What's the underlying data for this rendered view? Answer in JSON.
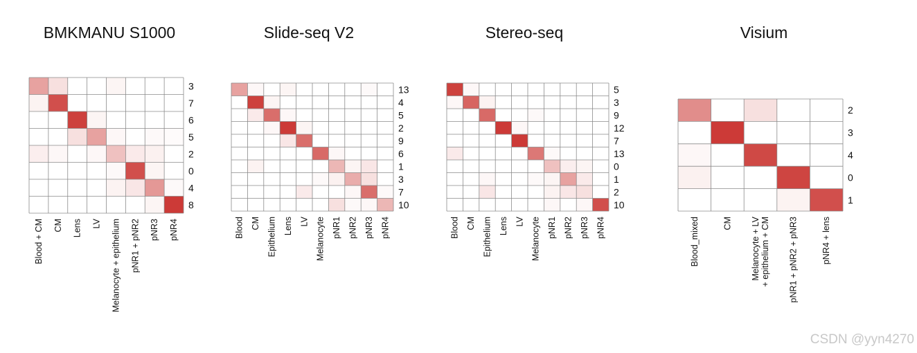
{
  "colors": {
    "max": "#c9302c",
    "grid": "#8a8a8a",
    "zero": "#ffffff"
  },
  "watermark": "CSDN @yyn4270",
  "chart_data": [
    {
      "type": "heatmap",
      "title": "BMKMANU S1000",
      "columns": [
        "Blood + CM",
        "CM",
        "Lens",
        "LV",
        "Melanocyte + epithelium",
        "pNR1 + pNR2",
        "pNR3",
        "pNR4"
      ],
      "rows": [
        "3",
        "7",
        "6",
        "5",
        "2",
        "0",
        "4",
        "8"
      ],
      "values": [
        [
          0.45,
          0.15,
          0,
          0,
          0.05,
          0,
          0,
          0
        ],
        [
          0.06,
          0.85,
          0,
          0,
          0,
          0,
          0,
          0
        ],
        [
          0,
          0,
          0.92,
          0.05,
          0,
          0,
          0,
          0
        ],
        [
          0,
          0,
          0.15,
          0.45,
          0.04,
          0,
          0.03,
          0.02
        ],
        [
          0.08,
          0.04,
          0,
          0.04,
          0.3,
          0.1,
          0.07,
          0
        ],
        [
          0,
          0,
          0,
          0,
          0.03,
          0.85,
          0.05,
          0
        ],
        [
          0,
          0,
          0,
          0,
          0.06,
          0.12,
          0.5,
          0.03
        ],
        [
          0,
          0,
          0,
          0,
          0,
          0,
          0.05,
          0.95
        ]
      ]
    },
    {
      "type": "heatmap",
      "title": "Slide-seq V2",
      "columns": [
        "Blood",
        "CM",
        "Epithelium",
        "Lens",
        "LV",
        "Melanocyte",
        "pNR1",
        "pNR2",
        "pNR3",
        "pNR4"
      ],
      "rows": [
        "13",
        "4",
        "5",
        "2",
        "9",
        "6",
        "1",
        "3",
        "7",
        "10"
      ],
      "values": [
        [
          0.45,
          0.04,
          0,
          0.05,
          0,
          0,
          0,
          0,
          0.03,
          0
        ],
        [
          0,
          0.92,
          0.05,
          0,
          0,
          0,
          0,
          0,
          0,
          0
        ],
        [
          0,
          0.1,
          0.7,
          0.04,
          0,
          0,
          0,
          0,
          0,
          0
        ],
        [
          0,
          0,
          0.04,
          0.95,
          0.05,
          0,
          0,
          0,
          0,
          0
        ],
        [
          0,
          0,
          0,
          0.12,
          0.7,
          0,
          0,
          0,
          0,
          0
        ],
        [
          0,
          0,
          0,
          0,
          0,
          0.72,
          0.04,
          0,
          0,
          0
        ],
        [
          0,
          0.06,
          0,
          0,
          0,
          0,
          0.35,
          0.05,
          0.12,
          0
        ],
        [
          0,
          0,
          0,
          0,
          0,
          0.03,
          0.07,
          0.4,
          0.15,
          0
        ],
        [
          0,
          0,
          0,
          0,
          0.1,
          0,
          0,
          0.04,
          0.7,
          0.03
        ],
        [
          0,
          0,
          0,
          0,
          0,
          0,
          0.15,
          0.03,
          0.04,
          0.35
        ]
      ]
    },
    {
      "type": "heatmap",
      "title": "Stereo-seq",
      "columns": [
        "Blood",
        "CM",
        "Epithelium",
        "Lens",
        "LV",
        "Melanocyte",
        "pNR1",
        "pNR2",
        "pNR3",
        "pNR4"
      ],
      "rows": [
        "5",
        "3",
        "9",
        "12",
        "7",
        "13",
        "0",
        "1",
        "2",
        "10"
      ],
      "values": [
        [
          0.92,
          0.04,
          0,
          0,
          0,
          0,
          0,
          0,
          0,
          0
        ],
        [
          0.04,
          0.75,
          0.06,
          0,
          0,
          0,
          0,
          0,
          0,
          0
        ],
        [
          0,
          0,
          0.72,
          0,
          0,
          0.03,
          0,
          0,
          0,
          0
        ],
        [
          0,
          0,
          0,
          0.95,
          0.04,
          0,
          0,
          0,
          0,
          0
        ],
        [
          0,
          0,
          0,
          0,
          0.95,
          0,
          0,
          0,
          0,
          0
        ],
        [
          0.1,
          0,
          0,
          0,
          0,
          0.65,
          0.03,
          0,
          0,
          0
        ],
        [
          0,
          0,
          0,
          0,
          0,
          0,
          0.3,
          0.08,
          0.05,
          0
        ],
        [
          0,
          0,
          0.04,
          0,
          0,
          0.03,
          0.05,
          0.45,
          0.1,
          0
        ],
        [
          0,
          0,
          0.12,
          0,
          0,
          0,
          0.06,
          0.12,
          0.15,
          0
        ],
        [
          0,
          0,
          0,
          0,
          0,
          0,
          0.04,
          0,
          0.04,
          0.85
        ]
      ]
    },
    {
      "type": "heatmap",
      "title": "Visium",
      "columns": [
        "Blood_mixed",
        "CM",
        "Melanocyte + LV\n+ epithelium + CM",
        "pNR1 + pNR2 + pNR3",
        "pNR4 + lens"
      ],
      "rows": [
        "2",
        "3",
        "4",
        "0",
        "1"
      ],
      "values": [
        [
          0.55,
          0,
          0.15,
          0,
          0
        ],
        [
          0,
          0.95,
          0,
          0,
          0
        ],
        [
          0.04,
          0,
          0.88,
          0,
          0
        ],
        [
          0.07,
          0,
          0,
          0.9,
          0
        ],
        [
          0,
          0,
          0,
          0.06,
          0.85
        ]
      ]
    }
  ]
}
